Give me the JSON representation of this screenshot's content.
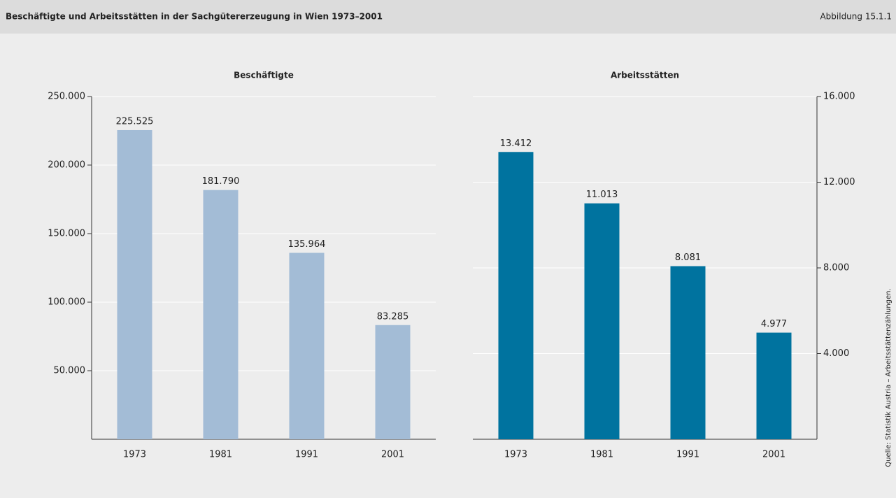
{
  "header": {
    "title": "Beschäftigte und Arbeitsstätten in der Sachgütererzeugung in Wien 1973–2001",
    "figure_label": "Abbildung 15.1.1"
  },
  "source": "Quelle: Statistik Austria – Arbeitsstättenzählungen.",
  "chart_data": [
    {
      "type": "bar",
      "title": "Beschäftigte",
      "categories": [
        "1973",
        "1981",
        "1991",
        "2001"
      ],
      "values": [
        225525,
        181790,
        135964,
        83285
      ],
      "value_labels": [
        "225.525",
        "181.790",
        "135.964",
        "83.285"
      ],
      "color": "#a3bcd6",
      "ylim": [
        0,
        250000
      ],
      "yticks": [
        {
          "value": 50000,
          "label": "50.000"
        },
        {
          "value": 100000,
          "label": "100.000"
        },
        {
          "value": 150000,
          "label": "150.000"
        },
        {
          "value": 200000,
          "label": "200.000"
        },
        {
          "value": 250000,
          "label": "250.000"
        }
      ],
      "yaxis_position": "left",
      "grid": true
    },
    {
      "type": "bar",
      "title": "Arbeitsstätten",
      "categories": [
        "1973",
        "1981",
        "1991",
        "2001"
      ],
      "values": [
        13412,
        11013,
        8081,
        4977
      ],
      "value_labels": [
        "13.412",
        "11.013",
        "8.081",
        "4.977"
      ],
      "color": "#00739f",
      "ylim": [
        0,
        16000
      ],
      "yticks": [
        {
          "value": 4000,
          "label": "4.000"
        },
        {
          "value": 8000,
          "label": "8.000"
        },
        {
          "value": 12000,
          "label": "12.000"
        },
        {
          "value": 16000,
          "label": "16.000"
        }
      ],
      "yaxis_position": "right",
      "grid": true
    }
  ]
}
